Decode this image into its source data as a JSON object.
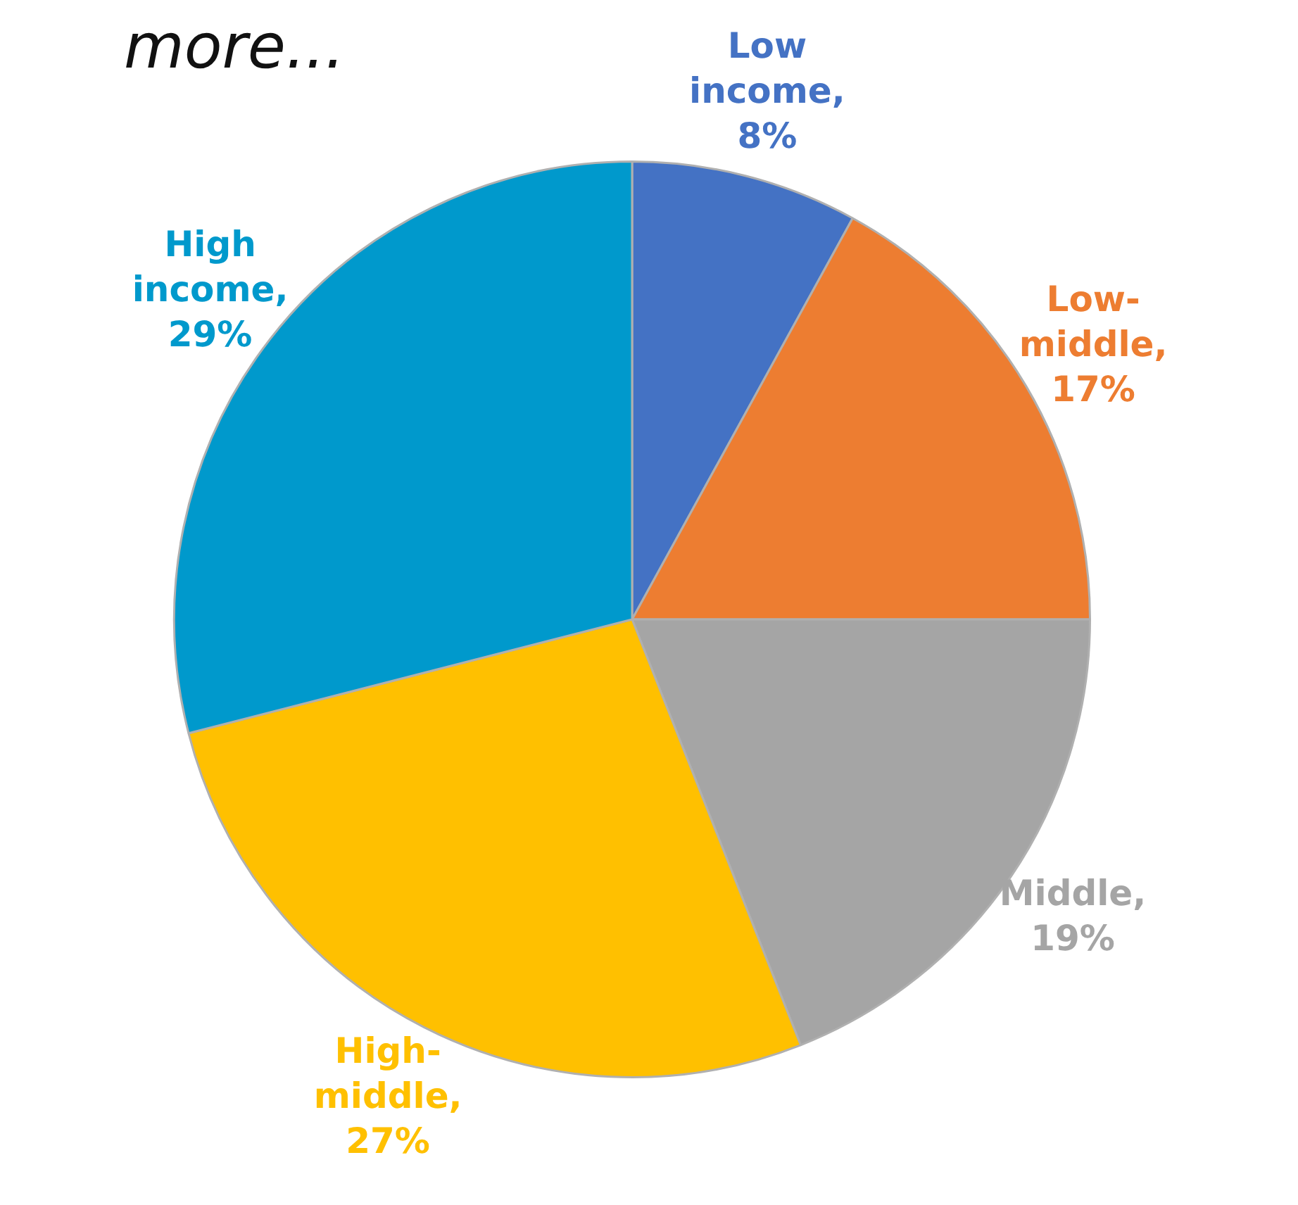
{
  "chart_data": {
    "type": "pie",
    "title": "more...",
    "categories": [
      "Low income",
      "Low-middle",
      "Middle",
      "High-middle",
      "High income"
    ],
    "values": [
      8,
      17,
      19,
      27,
      29
    ],
    "colors": [
      "#4472c4",
      "#ed7d31",
      "#a5a5a5",
      "#ffc000",
      "#0099cc"
    ],
    "value_labels": [
      ", 8%",
      ",17%",
      ",19%",
      ", 27%",
      ", 29%"
    ],
    "legend": false
  }
}
